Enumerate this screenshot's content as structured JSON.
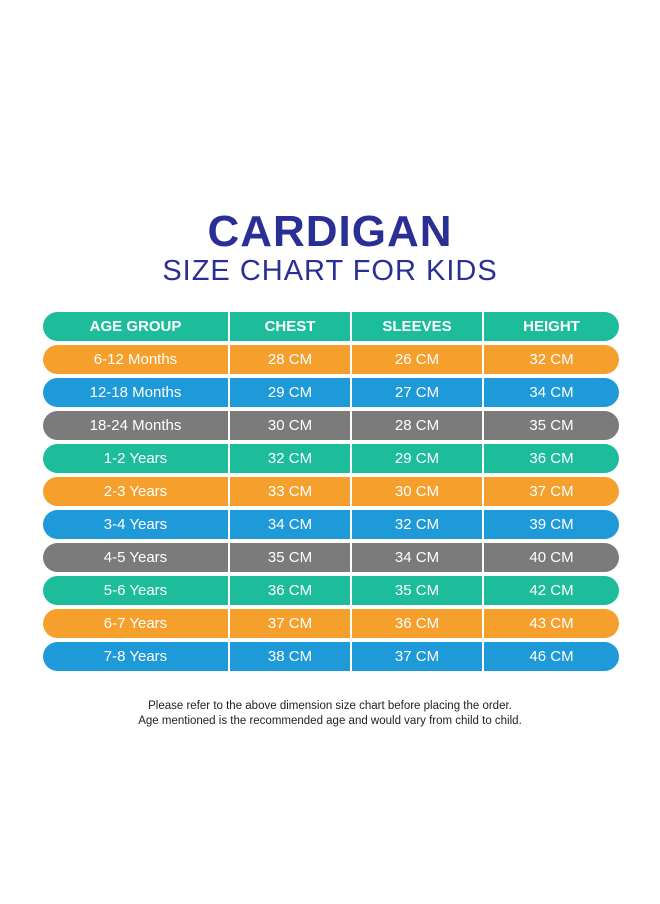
{
  "title": "CARDIGAN",
  "subtitle": "SIZE CHART FOR KIDS",
  "colors": {
    "title": "#2a2f95",
    "teal": "#1dbd9c",
    "orange": "#f5a02c",
    "blue": "#1f9ad9",
    "gray": "#7b7b7b"
  },
  "table": {
    "header": {
      "color": "teal",
      "cells": [
        "AGE GROUP",
        "CHEST",
        "SLEEVES",
        "HEIGHT"
      ]
    },
    "rows": [
      {
        "color": "orange",
        "cells": [
          "6-12 Months",
          "28 CM",
          "26 CM",
          "32 CM"
        ]
      },
      {
        "color": "blue",
        "cells": [
          "12-18 Months",
          "29 CM",
          "27 CM",
          "34 CM"
        ]
      },
      {
        "color": "gray",
        "cells": [
          "18-24 Months",
          "30 CM",
          "28 CM",
          "35 CM"
        ]
      },
      {
        "color": "teal",
        "cells": [
          "1-2 Years",
          "32 CM",
          "29 CM",
          "36 CM"
        ]
      },
      {
        "color": "orange",
        "cells": [
          "2-3 Years",
          "33 CM",
          "30 CM",
          "37 CM"
        ]
      },
      {
        "color": "blue",
        "cells": [
          "3-4 Years",
          "34 CM",
          "32 CM",
          "39 CM"
        ]
      },
      {
        "color": "gray",
        "cells": [
          "4-5 Years",
          "35 CM",
          "34 CM",
          "40 CM"
        ]
      },
      {
        "color": "teal",
        "cells": [
          "5-6 Years",
          "36 CM",
          "35 CM",
          "42 CM"
        ]
      },
      {
        "color": "orange",
        "cells": [
          "6-7 Years",
          "37 CM",
          "36 CM",
          "43 CM"
        ]
      },
      {
        "color": "blue",
        "cells": [
          "7-8 Years",
          "38 CM",
          "37 CM",
          "46 CM"
        ]
      }
    ]
  },
  "notes": [
    "Please refer to the above dimension size chart before placing the order.",
    "Age mentioned is the recommended age and would vary from child to child."
  ]
}
